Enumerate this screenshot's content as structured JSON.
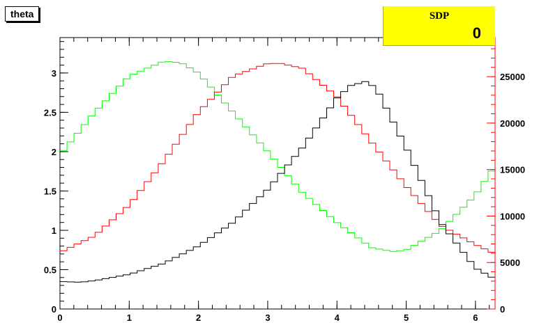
{
  "chart_data": {
    "type": "line",
    "title": "theta",
    "stats": {
      "label": "SDP",
      "value": "0"
    },
    "xlim": [
      0,
      6.2832
    ],
    "ylim_left": [
      0,
      3.45
    ],
    "ylim_right": [
      0,
      29200
    ],
    "x_ticks": [
      0,
      1,
      2,
      3,
      4,
      5,
      6
    ],
    "y_left_ticks": [
      0,
      0.5,
      1,
      1.5,
      2,
      2.5,
      3
    ],
    "y_left_tick_labels": [
      "0",
      "0.5",
      "1",
      "1.5",
      "2",
      "2.5",
      "3"
    ],
    "y_right_ticks": [
      0,
      5000,
      10000,
      15000,
      20000,
      25000
    ],
    "y_right_tick_labels": [
      "0",
      "5000",
      "10000",
      "15000",
      "20000",
      "25000"
    ],
    "grid": false,
    "series": [
      {
        "color": "#00ff00",
        "axis": "left",
        "x": [
          0.0,
          0.5,
          1.0,
          1.5,
          1.75,
          2.0,
          2.5,
          3.0,
          3.5,
          4.0,
          4.5,
          4.8,
          5.0,
          5.5,
          6.0,
          6.2832
        ],
        "y": [
          1.96,
          2.5,
          2.96,
          3.15,
          3.13,
          3.0,
          2.5,
          2.0,
          1.48,
          1.1,
          0.78,
          0.73,
          0.75,
          1.0,
          1.45,
          1.82
        ]
      },
      {
        "color": "#ff0000",
        "axis": "left",
        "x": [
          0.0,
          0.5,
          1.0,
          1.5,
          2.0,
          2.5,
          3.0,
          3.2,
          3.5,
          4.0,
          4.5,
          5.0,
          5.5,
          6.0,
          6.2832
        ],
        "y": [
          0.72,
          0.93,
          1.32,
          1.88,
          2.5,
          2.96,
          3.12,
          3.12,
          3.06,
          2.7,
          2.12,
          1.56,
          1.06,
          0.82,
          0.7
        ]
      },
      {
        "color": "#000000",
        "axis": "left",
        "x": [
          0.0,
          0.3,
          0.5,
          1.0,
          1.5,
          2.0,
          2.5,
          3.0,
          3.5,
          4.0,
          4.2,
          4.45,
          4.6,
          5.0,
          5.5,
          6.0,
          6.2832
        ],
        "y": [
          0.35,
          0.34,
          0.36,
          0.44,
          0.58,
          0.8,
          1.1,
          1.52,
          2.05,
          2.68,
          2.84,
          2.9,
          2.75,
          2.05,
          1.1,
          0.52,
          0.38
        ]
      }
    ]
  }
}
